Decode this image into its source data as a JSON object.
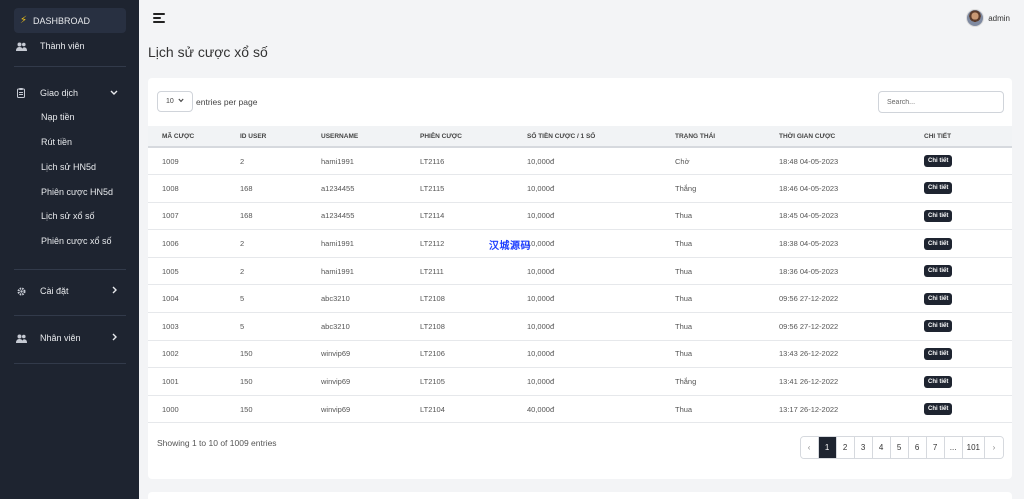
{
  "sidebar": {
    "dashboard": "DASHBROAD",
    "items": [
      {
        "label": "Thành viên"
      },
      {
        "label": "Giao dịch"
      },
      {
        "label": "Cài đặt"
      },
      {
        "label": "Nhân viên"
      }
    ],
    "sub_items": [
      "Nạp tiền",
      "Rút tiền",
      "Lịch sử HN5d",
      "Phiên cược HN5d",
      "Lịch sử xổ số",
      "Phiên cược xổ số"
    ]
  },
  "topbar": {
    "user": "admin"
  },
  "page": {
    "title": "Lịch sử cược xổ số"
  },
  "controls": {
    "entries_value": "10",
    "entries_label": "entries per page",
    "search_placeholder": "Search..."
  },
  "table": {
    "headers": [
      "MÃ CƯỢC",
      "ID USER",
      "USERNAME",
      "PHIÊN CƯỢC",
      "SỐ TIỀN CƯỢC / 1 SỐ",
      "TRẠNG THÁI",
      "THỜI GIAN CƯỢC",
      "CHI TIẾT"
    ],
    "rows": [
      [
        "1009",
        "2",
        "hami1991",
        "LT2116",
        "10,000đ",
        "Chờ",
        "18:48 04-05-2023",
        "Chi tiết"
      ],
      [
        "1008",
        "168",
        "a1234455",
        "LT2115",
        "10,000đ",
        "Thắng",
        "18:46 04-05-2023",
        "Chi tiết"
      ],
      [
        "1007",
        "168",
        "a1234455",
        "LT2114",
        "10,000đ",
        "Thua",
        "18:45 04-05-2023",
        "Chi tiết"
      ],
      [
        "1006",
        "2",
        "hami1991",
        "LT2112",
        "10,000đ",
        "Thua",
        "18:38 04-05-2023",
        "Chi tiết"
      ],
      [
        "1005",
        "2",
        "hami1991",
        "LT2111",
        "10,000đ",
        "Thua",
        "18:36 04-05-2023",
        "Chi tiết"
      ],
      [
        "1004",
        "5",
        "abc3210",
        "LT2108",
        "10,000đ",
        "Thua",
        "09:56 27-12-2022",
        "Chi tiết"
      ],
      [
        "1003",
        "5",
        "abc3210",
        "LT2108",
        "10,000đ",
        "Thua",
        "09:56 27-12-2022",
        "Chi tiết"
      ],
      [
        "1002",
        "150",
        "winvip69",
        "LT2106",
        "10,000đ",
        "Thua",
        "13:43 26-12-2022",
        "Chi tiết"
      ],
      [
        "1001",
        "150",
        "winvip69",
        "LT2105",
        "10,000đ",
        "Thắng",
        "13:41 26-12-2022",
        "Chi tiết"
      ],
      [
        "1000",
        "150",
        "winvip69",
        "LT2104",
        "40,000đ",
        "Thua",
        "13:17 26-12-2022",
        "Chi tiết"
      ]
    ]
  },
  "footer": {
    "info": "Showing 1 to 10 of 1009 entries"
  },
  "pagination": {
    "prev": "‹",
    "pages": [
      "1",
      "2",
      "3",
      "4",
      "5",
      "6",
      "7",
      "...",
      "101"
    ],
    "current": "1",
    "next": "›"
  },
  "watermark": "汉城源码"
}
